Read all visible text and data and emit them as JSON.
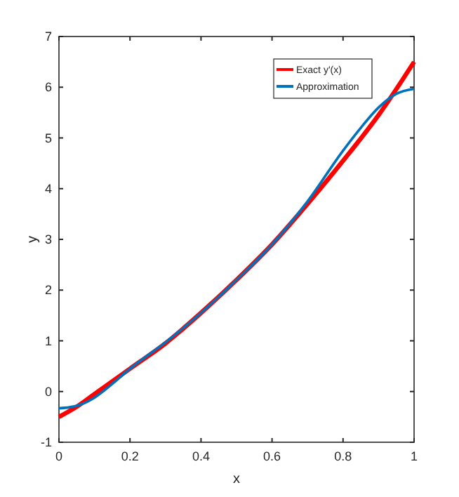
{
  "chart_data": {
    "type": "line",
    "xlabel": "x",
    "ylabel": "y",
    "xlim": [
      0,
      1
    ],
    "ylim": [
      -1,
      7
    ],
    "xticks": [
      0,
      0.2,
      0.4,
      0.6,
      0.8,
      1
    ],
    "yticks": [
      -1,
      0,
      1,
      2,
      3,
      4,
      5,
      6,
      7
    ],
    "legend": "top right",
    "grid": false,
    "series": [
      {
        "name": "Exact y'(x)",
        "color": "#ff0000",
        "x": [
          0,
          0.05,
          0.1,
          0.15,
          0.2,
          0.3,
          0.4,
          0.5,
          0.6,
          0.7,
          0.8,
          0.9,
          1
        ],
        "values": [
          -0.5,
          -0.3,
          -0.05,
          0.2,
          0.45,
          0.95,
          1.55,
          2.2,
          2.9,
          3.7,
          4.55,
          5.45,
          6.5
        ]
      },
      {
        "name": "Approximation",
        "color": "#0072bd",
        "x": [
          0,
          0.03,
          0.06,
          0.1,
          0.15,
          0.2,
          0.3,
          0.4,
          0.5,
          0.6,
          0.7,
          0.8,
          0.85,
          0.9,
          0.95,
          1
        ],
        "values": [
          -0.33,
          -0.31,
          -0.26,
          -0.12,
          0.15,
          0.45,
          0.97,
          1.55,
          2.2,
          2.9,
          3.75,
          4.75,
          5.2,
          5.6,
          5.87,
          5.97
        ]
      }
    ]
  }
}
